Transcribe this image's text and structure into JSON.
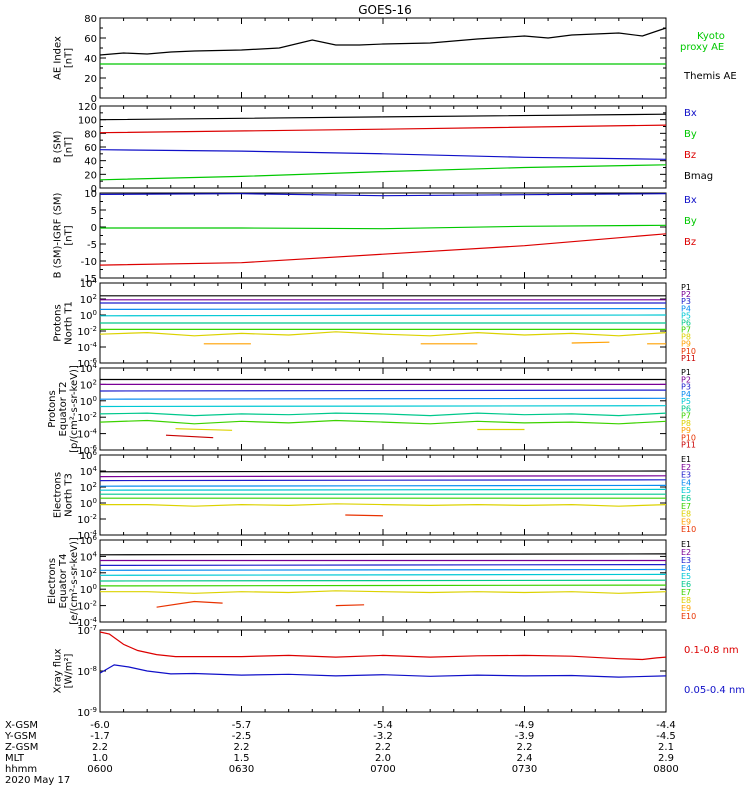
{
  "title": "GOES-16",
  "colors": {
    "black": "#000000",
    "green": "#00c800",
    "blue": "#1010c8",
    "red": "#dc0000",
    "ch": [
      "#000000",
      "#7a0096",
      "#1e1ecc",
      "#0a8cf0",
      "#00c8d4",
      "#00c88c",
      "#3cd200",
      "#dcd200",
      "#ffa000",
      "#e83200",
      "#c80000"
    ]
  },
  "time": {
    "start_min": 0,
    "end_min": 120,
    "ticks_min": [
      0,
      30,
      60,
      90,
      120
    ]
  },
  "footer": {
    "rows": [
      {
        "label": "X-GSM",
        "values": [
          "-6.0",
          "-5.7",
          "-5.4",
          "-4.9",
          "-4.4"
        ]
      },
      {
        "label": "Y-GSM",
        "values": [
          "-1.7",
          "-2.5",
          "-3.2",
          "-3.9",
          "-4.5"
        ]
      },
      {
        "label": "Z-GSM",
        "values": [
          "2.2",
          "2.2",
          "2.2",
          "2.2",
          "2.1"
        ]
      },
      {
        "label": "MLT",
        "values": [
          "1.0",
          "1.5",
          "2.0",
          "2.4",
          "2.9"
        ]
      },
      {
        "label": "hhmm",
        "values": [
          "0600",
          "0630",
          "0700",
          "0730",
          "0800"
        ]
      }
    ],
    "date": "2020 May 17"
  },
  "chart_data": [
    {
      "type": "line",
      "id": "ae",
      "ylabel_lines": [
        "AE Index",
        "[nT]"
      ],
      "ylim": [
        0,
        80
      ],
      "yticks": [
        0,
        20,
        40,
        60,
        80
      ],
      "legend": [
        {
          "text": "Kyoto",
          "color_key": "green"
        },
        {
          "text": "proxy AE",
          "color_key": "green"
        },
        {
          "text": "Themis AE",
          "color_key": "black"
        }
      ],
      "series": [
        {
          "color_key": "black",
          "x": [
            0,
            5,
            10,
            15,
            20,
            30,
            38,
            45,
            50,
            55,
            60,
            70,
            80,
            90,
            95,
            100,
            110,
            115,
            120
          ],
          "y": [
            43,
            45,
            44,
            46,
            47,
            48,
            50,
            58,
            53,
            53,
            54,
            55,
            59,
            62,
            60,
            63,
            65,
            62,
            70
          ]
        },
        {
          "color_key": "green",
          "x": [
            0,
            120
          ],
          "y": [
            34,
            34
          ]
        }
      ]
    },
    {
      "type": "line",
      "id": "bsm",
      "ylabel_lines": [
        "B (SM)",
        "[nT]"
      ],
      "ylim": [
        0,
        120
      ],
      "yticks": [
        0,
        20,
        40,
        60,
        80,
        100,
        120
      ],
      "legend": [
        {
          "text": "Bx",
          "color_key": "blue"
        },
        {
          "text": "By",
          "color_key": "green"
        },
        {
          "text": "Bz",
          "color_key": "red"
        },
        {
          "text": "Bmag",
          "color_key": "black"
        }
      ],
      "series": [
        {
          "color_key": "black",
          "x": [
            0,
            60,
            120
          ],
          "y": [
            100,
            104,
            108
          ]
        },
        {
          "color_key": "red",
          "x": [
            0,
            60,
            120
          ],
          "y": [
            81,
            86,
            92
          ]
        },
        {
          "color_key": "blue",
          "x": [
            0,
            30,
            60,
            90,
            120
          ],
          "y": [
            56,
            54,
            50,
            45,
            42
          ]
        },
        {
          "color_key": "green",
          "x": [
            0,
            30,
            60,
            90,
            120
          ],
          "y": [
            12,
            17,
            24,
            30,
            34
          ]
        }
      ]
    },
    {
      "type": "line",
      "id": "bigrf",
      "ylabel_lines": [
        "B (SM)-IGRF (SM)",
        "[nT]"
      ],
      "ylim": [
        -15,
        10
      ],
      "yticks": [
        -15,
        -10,
        -5,
        0,
        5,
        10
      ],
      "legend": [
        {
          "text": "Bx",
          "color_key": "blue"
        },
        {
          "text": "By",
          "color_key": "green"
        },
        {
          "text": "Bz",
          "color_key": "red"
        }
      ],
      "series": [
        {
          "color_key": "blue",
          "x": [
            0,
            30,
            60,
            90,
            120
          ],
          "y": [
            9.6,
            9.8,
            9.2,
            9.5,
            9.8
          ]
        },
        {
          "color_key": "green",
          "x": [
            0,
            30,
            60,
            90,
            120
          ],
          "y": [
            -0.3,
            -0.3,
            -0.5,
            0.2,
            0.5
          ]
        },
        {
          "color_key": "red",
          "x": [
            0,
            30,
            60,
            90,
            120
          ],
          "y": [
            -11.2,
            -10.5,
            -8,
            -5.5,
            -2
          ]
        }
      ]
    },
    {
      "type": "line",
      "id": "pnorth",
      "log": true,
      "ylabel_lines": [
        "Protons",
        "North T1"
      ],
      "ylim": [
        -6,
        4
      ],
      "yticks": [
        -6,
        -4,
        -2,
        0,
        2,
        4
      ],
      "legend_small": [
        "P1",
        "P2",
        "P3",
        "P4",
        "P5",
        "P6",
        "P7",
        "P8",
        "P9",
        "P10",
        "P11"
      ],
      "series": [
        {
          "ch": 0,
          "x": [
            0,
            120
          ],
          "y": [
            2.4,
            2.4
          ]
        },
        {
          "ch": 1,
          "x": [
            0,
            120
          ],
          "y": [
            1.9,
            1.9
          ]
        },
        {
          "ch": 2,
          "x": [
            0,
            120
          ],
          "y": [
            1.5,
            1.5
          ]
        },
        {
          "ch": 3,
          "x": [
            0,
            120
          ],
          "y": [
            0.7,
            0.8
          ]
        },
        {
          "ch": 4,
          "x": [
            0,
            120
          ],
          "y": [
            -0.1,
            0
          ]
        },
        {
          "ch": 5,
          "x": [
            0,
            120
          ],
          "y": [
            -1,
            -1
          ]
        },
        {
          "ch": 6,
          "x": [
            0,
            120
          ],
          "y": [
            -1.8,
            -1.8
          ]
        },
        {
          "ch": 7,
          "x": [
            0,
            10,
            20,
            30,
            40,
            50,
            60,
            70,
            80,
            90,
            100,
            110,
            120
          ],
          "y": [
            -2.4,
            -2.2,
            -2.6,
            -2.3,
            -2.5,
            -2.1,
            -2.4,
            -2.6,
            -2.2,
            -2.5,
            -2.3,
            -2.6,
            -2.2
          ]
        },
        {
          "ch": 8,
          "x": [
            22,
            32
          ],
          "y": [
            -3.6,
            -3.6
          ]
        },
        {
          "ch": 8,
          "x": [
            68,
            80
          ],
          "y": [
            -3.6,
            -3.6
          ]
        },
        {
          "ch": 8,
          "x": [
            100,
            108
          ],
          "y": [
            -3.5,
            -3.4
          ]
        },
        {
          "ch": 8,
          "x": [
            116,
            120
          ],
          "y": [
            -3.6,
            -3.6
          ]
        }
      ]
    },
    {
      "type": "line",
      "id": "peq",
      "log": true,
      "ylabel_lines": [
        "Protons",
        "Equator T2",
        "[p/(cm²-s-sr-keV)]"
      ],
      "ylim": [
        -6,
        4
      ],
      "yticks": [
        -6,
        -4,
        -2,
        0,
        2,
        4
      ],
      "legend_small": [
        "P1",
        "P2",
        "P3",
        "P4",
        "P5",
        "P6",
        "P7",
        "P8",
        "P9",
        "P10",
        "P11"
      ],
      "series": [
        {
          "ch": 0,
          "x": [
            0,
            120
          ],
          "y": [
            2.6,
            2.6
          ]
        },
        {
          "ch": 1,
          "x": [
            0,
            120
          ],
          "y": [
            2,
            2
          ]
        },
        {
          "ch": 2,
          "x": [
            0,
            120
          ],
          "y": [
            1.2,
            1.3
          ]
        },
        {
          "ch": 3,
          "x": [
            0,
            120
          ],
          "y": [
            0.2,
            0.3
          ]
        },
        {
          "ch": 4,
          "x": [
            0,
            120
          ],
          "y": [
            -0.7,
            -0.6
          ]
        },
        {
          "ch": 5,
          "x": [
            0,
            10,
            20,
            30,
            40,
            50,
            60,
            70,
            80,
            90,
            100,
            110,
            120
          ],
          "y": [
            -1.6,
            -1.5,
            -1.8,
            -1.6,
            -1.7,
            -1.5,
            -1.6,
            -1.8,
            -1.5,
            -1.7,
            -1.6,
            -1.8,
            -1.5
          ]
        },
        {
          "ch": 6,
          "x": [
            0,
            10,
            20,
            30,
            40,
            50,
            60,
            70,
            80,
            90,
            100,
            110,
            120
          ],
          "y": [
            -2.6,
            -2.4,
            -2.8,
            -2.5,
            -2.7,
            -2.4,
            -2.6,
            -2.8,
            -2.5,
            -2.7,
            -2.6,
            -2.8,
            -2.5
          ]
        },
        {
          "ch": 7,
          "x": [
            16,
            28
          ],
          "y": [
            -3.4,
            -3.6
          ]
        },
        {
          "ch": 7,
          "x": [
            80,
            90
          ],
          "y": [
            -3.5,
            -3.5
          ]
        },
        {
          "ch": 10,
          "x": [
            14,
            24
          ],
          "y": [
            -4.2,
            -4.5
          ]
        }
      ]
    },
    {
      "type": "line",
      "id": "enorth",
      "log": true,
      "ylabel_lines": [
        "Electrons",
        "North T3"
      ],
      "ylim": [
        -4,
        6
      ],
      "yticks": [
        -4,
        -2,
        0,
        2,
        4,
        6
      ],
      "legend_small": [
        "E1",
        "E2",
        "E3",
        "E4",
        "E5",
        "E6",
        "E7",
        "E8",
        "E9",
        "E10"
      ],
      "series": [
        {
          "ch": 0,
          "x": [
            0,
            120
          ],
          "y": [
            3.9,
            4
          ]
        },
        {
          "ch": 1,
          "x": [
            0,
            120
          ],
          "y": [
            3.3,
            3.4
          ]
        },
        {
          "ch": 2,
          "x": [
            0,
            120
          ],
          "y": [
            2.8,
            2.9
          ]
        },
        {
          "ch": 3,
          "x": [
            0,
            120
          ],
          "y": [
            2.1,
            2.2
          ]
        },
        {
          "ch": 4,
          "x": [
            0,
            120
          ],
          "y": [
            1.6,
            1.7
          ]
        },
        {
          "ch": 5,
          "x": [
            0,
            120
          ],
          "y": [
            1.1,
            1.1
          ]
        },
        {
          "ch": 6,
          "x": [
            0,
            120
          ],
          "y": [
            0.6,
            0.6
          ]
        },
        {
          "ch": 7,
          "x": [
            0,
            10,
            20,
            30,
            40,
            50,
            60,
            70,
            80,
            90,
            100,
            110,
            120
          ],
          "y": [
            -0.2,
            -0.2,
            -0.4,
            -0.2,
            -0.3,
            -0.1,
            -0.2,
            -0.3,
            -0.2,
            -0.3,
            -0.2,
            -0.4,
            -0.2
          ]
        },
        {
          "ch": 9,
          "x": [
            52,
            60
          ],
          "y": [
            -1.5,
            -1.6
          ]
        }
      ]
    },
    {
      "type": "line",
      "id": "eeq",
      "log": true,
      "ylabel_lines": [
        "Electrons",
        "Equator T4",
        "[e/(cm²-s-sr-keV)]"
      ],
      "ylim": [
        -4,
        6
      ],
      "yticks": [
        -4,
        -2,
        0,
        2,
        4,
        6
      ],
      "legend_small": [
        "E1",
        "E2",
        "E3",
        "E4",
        "E5",
        "E6",
        "E7",
        "E8",
        "E9",
        "E10"
      ],
      "series": [
        {
          "ch": 0,
          "x": [
            0,
            120
          ],
          "y": [
            4.2,
            4.3
          ]
        },
        {
          "ch": 1,
          "x": [
            0,
            120
          ],
          "y": [
            3.5,
            3.5
          ]
        },
        {
          "ch": 2,
          "x": [
            0,
            120
          ],
          "y": [
            2.9,
            3
          ]
        },
        {
          "ch": 3,
          "x": [
            0,
            120
          ],
          "y": [
            2.3,
            2.4
          ]
        },
        {
          "ch": 4,
          "x": [
            0,
            120
          ],
          "y": [
            1.7,
            1.8
          ]
        },
        {
          "ch": 5,
          "x": [
            0,
            120
          ],
          "y": [
            1,
            1.1
          ]
        },
        {
          "ch": 6,
          "x": [
            0,
            120
          ],
          "y": [
            0.4,
            0.5
          ]
        },
        {
          "ch": 7,
          "x": [
            0,
            10,
            20,
            30,
            40,
            50,
            60,
            70,
            80,
            90,
            100,
            110,
            120
          ],
          "y": [
            -0.3,
            -0.3,
            -0.5,
            -0.3,
            -0.4,
            -0.2,
            -0.3,
            -0.4,
            -0.3,
            -0.4,
            -0.3,
            -0.5,
            -0.3
          ]
        },
        {
          "ch": 9,
          "x": [
            12,
            20,
            26
          ],
          "y": [
            -2.2,
            -1.5,
            -1.7
          ]
        },
        {
          "ch": 9,
          "x": [
            50,
            56
          ],
          "y": [
            -2,
            -1.9
          ]
        }
      ]
    },
    {
      "type": "line",
      "id": "xray",
      "log": true,
      "ylabel_lines": [
        "Xray flux",
        "[W/m²]"
      ],
      "ylim": [
        -9,
        -7
      ],
      "yticks": [
        -9,
        -8,
        -7
      ],
      "legend": [
        {
          "text": "0.1-0.8 nm",
          "color_key": "red"
        },
        {
          "text": "0.05-0.4 nm",
          "color_key": "blue"
        }
      ],
      "series": [
        {
          "color_key": "red",
          "x": [
            0,
            2,
            5,
            8,
            12,
            16,
            20,
            30,
            40,
            50,
            60,
            70,
            80,
            90,
            100,
            110,
            115,
            118,
            120
          ],
          "y": [
            -7.05,
            -7.1,
            -7.35,
            -7.5,
            -7.6,
            -7.65,
            -7.65,
            -7.65,
            -7.62,
            -7.66,
            -7.62,
            -7.66,
            -7.63,
            -7.62,
            -7.64,
            -7.7,
            -7.72,
            -7.68,
            -7.66
          ]
        },
        {
          "color_key": "blue",
          "x": [
            0,
            3,
            6,
            10,
            15,
            20,
            30,
            40,
            50,
            60,
            70,
            80,
            90,
            100,
            110,
            120
          ],
          "y": [
            -8.05,
            -7.85,
            -7.9,
            -8,
            -8.07,
            -8.06,
            -8.1,
            -8.08,
            -8.12,
            -8.09,
            -8.13,
            -8.1,
            -8.12,
            -8.11,
            -8.15,
            -8.12
          ]
        }
      ]
    }
  ]
}
